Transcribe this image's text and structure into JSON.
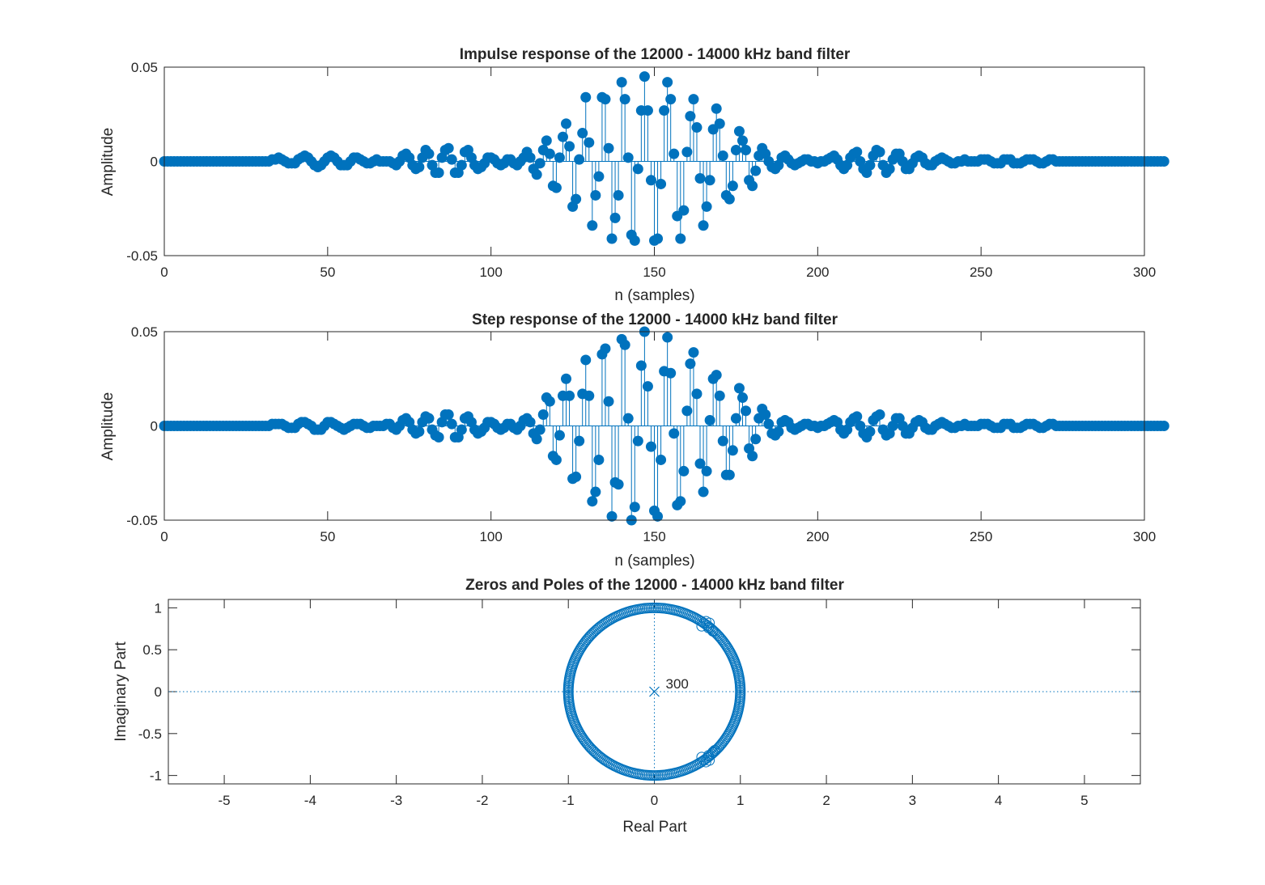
{
  "colors": {
    "series": "#0072BD",
    "axis": "#262626",
    "background": "#ffffff"
  },
  "chart_data": [
    {
      "type": "stem",
      "title": "Impulse response of the 12000 - 14000 kHz band filter",
      "xlabel": "n (samples)",
      "ylabel": "Amplitude",
      "xlim": [
        0,
        300
      ],
      "ylim": [
        -0.05,
        0.05
      ],
      "xticks": [
        0,
        50,
        100,
        150,
        200,
        250,
        300
      ],
      "xtick_labels": [
        "0",
        "50",
        "100",
        "150",
        "200",
        "250",
        "300"
      ],
      "yticks": [
        -0.05,
        0,
        0.05
      ],
      "ytick_labels": [
        "-0.05",
        "0",
        "0.05"
      ],
      "grid": false,
      "series": [
        {
          "x_start": 0,
          "x_step": 1,
          "values": [
            0,
            0,
            0,
            0,
            0,
            0,
            0,
            0,
            0,
            0,
            0,
            0,
            0,
            0,
            0,
            0,
            0,
            0,
            0,
            0,
            0,
            0,
            0,
            0,
            0,
            0,
            0,
            0,
            0,
            0,
            0,
            0,
            0,
            0.001,
            0.001,
            0.002,
            0.001,
            0,
            -0.001,
            -0.001,
            -0.001,
            0.001,
            0.002,
            0.003,
            0.002,
            0,
            -0.002,
            -0.003,
            -0.002,
            0,
            0.002,
            0.003,
            0.002,
            0,
            -0.002,
            -0.002,
            -0.002,
            0,
            0.002,
            0.002,
            0.001,
            0,
            -0.001,
            -0.001,
            0,
            0.001,
            0,
            0,
            0,
            0,
            -0.001,
            -0.002,
            0,
            0.003,
            0.004,
            0.002,
            -0.002,
            -0.004,
            -0.003,
            0.002,
            0.006,
            0.004,
            -0.002,
            -0.006,
            -0.006,
            0.002,
            0.006,
            0.007,
            0.001,
            -0.006,
            -0.006,
            -0.002,
            0.005,
            0.006,
            0.002,
            -0.002,
            -0.004,
            -0.003,
            -0.001,
            0.002,
            0.002,
            0.001,
            -0.001,
            -0.002,
            -0.001,
            0.001,
            0.001,
            -0.001,
            -0.002,
            0,
            0.002,
            0.005,
            0.002,
            -0.004,
            -0.007,
            -0.001,
            0.006,
            0.011,
            0.004,
            -0.013,
            -0.014,
            0.002,
            0.013,
            0.02,
            0.008,
            -0.024,
            -0.02,
            0.001,
            0.015,
            0.034,
            0.01,
            -0.034,
            -0.018,
            -0.008,
            0.034,
            0.033,
            0.007,
            -0.041,
            -0.03,
            -0.018,
            0.042,
            0.033,
            0.002,
            -0.039,
            -0.042,
            -0.004,
            0.027,
            0.045,
            0.027,
            -0.01,
            -0.042,
            -0.041,
            -0.012,
            0.027,
            0.042,
            0.033,
            0.004,
            -0.029,
            -0.041,
            -0.026,
            0.005,
            0.024,
            0.033,
            0.018,
            -0.009,
            -0.034,
            -0.024,
            -0.01,
            0.017,
            0.028,
            0.02,
            0.003,
            -0.018,
            -0.02,
            -0.013,
            0.006,
            0.016,
            0.011,
            0.006,
            -0.01,
            -0.013,
            -0.005,
            0.003,
            0.007,
            0.004,
            0,
            -0.003,
            -0.004,
            -0.002,
            0.002,
            0.003,
            0.001,
            -0.001,
            -0.002,
            -0.001,
            0,
            0.001,
            0.001,
            0,
            0,
            -0.001,
            0,
            0,
            0.001,
            0.002,
            0.003,
            0.001,
            -0.002,
            -0.004,
            -0.002,
            0.002,
            0.004,
            0.005,
            0,
            -0.004,
            -0.006,
            -0.002,
            0.003,
            0.006,
            0.005,
            -0.002,
            -0.006,
            -0.004,
            0.001,
            0.004,
            0.004,
            0,
            -0.004,
            -0.004,
            -0.001,
            0.002,
            0.003,
            0.002,
            -0.001,
            -0.002,
            -0.002,
            0,
            0.001,
            0.002,
            0.001,
            0,
            -0.001,
            -0.001,
            0,
            0,
            0.001,
            0,
            0,
            0,
            0,
            0.001,
            0.001,
            0.001,
            0,
            -0.001,
            -0.001,
            -0.001,
            0.001,
            0.001,
            0.001,
            -0.001,
            -0.001,
            -0.001,
            0,
            0.001,
            0.001,
            0.001,
            0,
            -0.001,
            -0.001,
            0,
            0.001,
            0.001,
            0,
            0,
            0,
            0,
            0,
            0,
            0,
            0,
            0,
            0,
            0,
            0,
            0,
            0,
            0,
            0,
            0,
            0,
            0,
            0,
            0,
            0,
            0,
            0,
            0,
            0,
            0,
            0,
            0,
            0,
            0,
            0,
            0,
            0
          ]
        }
      ]
    },
    {
      "type": "stem",
      "title": "Step response of the 12000 - 14000 kHz band filter",
      "xlabel": "n (samples)",
      "ylabel": "Amplitude",
      "xlim": [
        0,
        300
      ],
      "ylim": [
        -0.05,
        0.05
      ],
      "xticks": [
        0,
        50,
        100,
        150,
        200,
        250,
        300
      ],
      "xtick_labels": [
        "0",
        "50",
        "100",
        "150",
        "200",
        "250",
        "300"
      ],
      "yticks": [
        -0.05,
        0,
        0.05
      ],
      "ytick_labels": [
        "-0.05",
        "0",
        "0.05"
      ],
      "grid": false,
      "series": [
        {
          "x_start": 0,
          "x_step": 1,
          "values": [
            0,
            0,
            0,
            0,
            0,
            0,
            0,
            0,
            0,
            0,
            0,
            0,
            0,
            0,
            0,
            0,
            0,
            0,
            0,
            0,
            0,
            0,
            0,
            0,
            0,
            0,
            0,
            0,
            0,
            0,
            0,
            0,
            0,
            0.001,
            0.001,
            0.001,
            0.001,
            0,
            -0.001,
            -0.001,
            -0.001,
            0.001,
            0.002,
            0.002,
            0.001,
            0,
            -0.002,
            -0.002,
            -0.002,
            0,
            0.002,
            0.002,
            0.001,
            0,
            -0.001,
            -0.002,
            -0.001,
            0,
            0.001,
            0.001,
            0.001,
            0,
            -0.001,
            -0.001,
            0,
            0,
            0,
            0,
            0.001,
            0.001,
            -0.001,
            -0.002,
            0,
            0.003,
            0.004,
            0.002,
            -0.002,
            -0.004,
            -0.003,
            0.002,
            0.005,
            0.004,
            -0.002,
            -0.005,
            -0.006,
            0.002,
            0.006,
            0.006,
            0.001,
            -0.006,
            -0.006,
            -0.002,
            0.004,
            0.005,
            0.002,
            -0.002,
            -0.004,
            -0.003,
            -0.001,
            0.002,
            0.002,
            0.001,
            -0.001,
            -0.002,
            -0.001,
            0.001,
            0.001,
            -0.001,
            -0.002,
            0,
            0.003,
            0.004,
            0.002,
            -0.004,
            -0.007,
            -0.002,
            0.006,
            0.015,
            0.013,
            -0.016,
            -0.018,
            -0.005,
            0.016,
            0.025,
            0.016,
            -0.028,
            -0.027,
            -0.008,
            0.017,
            0.035,
            0.016,
            -0.04,
            -0.035,
            -0.018,
            0.038,
            0.041,
            0.013,
            -0.048,
            -0.03,
            -0.031,
            0.046,
            0.043,
            0.004,
            -0.05,
            -0.043,
            -0.008,
            0.032,
            0.05,
            0.021,
            -0.011,
            -0.045,
            -0.048,
            -0.018,
            0.029,
            0.047,
            0.028,
            -0.004,
            -0.042,
            -0.04,
            -0.024,
            0.008,
            0.033,
            0.039,
            0.017,
            -0.02,
            -0.035,
            -0.024,
            0.003,
            0.025,
            0.027,
            0.016,
            -0.008,
            -0.026,
            -0.026,
            -0.013,
            0.004,
            0.02,
            0.015,
            0.008,
            -0.012,
            -0.016,
            -0.007,
            0.004,
            0.009,
            0.006,
            0.001,
            -0.004,
            -0.005,
            -0.003,
            0.002,
            0.003,
            0.002,
            -0.001,
            -0.002,
            -0.001,
            0,
            0.001,
            0.001,
            0,
            0,
            -0.001,
            0,
            0,
            0.001,
            0.002,
            0.003,
            0.002,
            -0.002,
            -0.004,
            -0.002,
            0.002,
            0.004,
            0.005,
            0,
            -0.004,
            -0.006,
            -0.003,
            0.003,
            0.005,
            0.006,
            -0.002,
            -0.005,
            -0.004,
            0,
            0.004,
            0.004,
            0,
            -0.004,
            -0.004,
            -0.001,
            0.002,
            0.003,
            0.002,
            -0.001,
            -0.002,
            -0.002,
            0,
            0.001,
            0.002,
            0.001,
            0,
            -0.001,
            -0.001,
            0,
            0,
            0.001,
            0,
            0,
            0,
            0,
            0.001,
            0.001,
            0.001,
            0,
            -0.001,
            -0.001,
            -0.001,
            0.001,
            0.001,
            0.001,
            -0.001,
            -0.001,
            -0.001,
            0,
            0.001,
            0.001,
            0.001,
            0,
            -0.001,
            -0.001,
            0,
            0.001,
            0.001,
            0,
            0,
            0,
            0,
            0,
            0,
            0,
            0,
            0,
            0,
            0,
            0,
            0,
            0,
            0,
            0,
            0,
            0,
            0,
            0,
            0,
            0,
            0,
            0,
            0,
            0,
            0,
            0,
            0,
            0,
            0,
            0,
            0,
            0
          ]
        }
      ]
    },
    {
      "type": "scatter",
      "title": "Zeros and Poles of the 12000 - 14000 kHz band filter",
      "xlabel": "Real Part",
      "ylabel": "Imaginary Part",
      "xlim": [
        -5.65,
        5.65
      ],
      "ylim": [
        -1.1,
        1.1
      ],
      "xticks": [
        -5,
        -4,
        -3,
        -2,
        -1,
        0,
        1,
        2,
        3,
        4,
        5
      ],
      "xtick_labels": [
        "-5",
        "-4",
        "-3",
        "-2",
        "-1",
        "0",
        "1",
        "2",
        "3",
        "4",
        "5"
      ],
      "yticks": [
        -1,
        -0.5,
        0,
        0.5,
        1
      ],
      "ytick_labels": [
        "-1",
        "-0.5",
        "0",
        "0.5",
        "1"
      ],
      "grid": false,
      "unit_circle_zeros": {
        "radius": 1,
        "count": 300
      },
      "off_circle_zeros": [
        [
          0.6,
          0.84
        ],
        [
          0.63,
          0.76
        ],
        [
          0.55,
          0.78
        ],
        [
          0.68,
          0.72
        ],
        [
          0.64,
          0.82
        ],
        [
          0.6,
          -0.84
        ],
        [
          0.63,
          -0.76
        ],
        [
          0.55,
          -0.78
        ],
        [
          0.68,
          -0.72
        ],
        [
          0.64,
          -0.82
        ],
        [
          0.7,
          -0.7
        ]
      ],
      "poles": [
        [
          0,
          0
        ]
      ],
      "pole_multiplicity_label": "300"
    }
  ]
}
